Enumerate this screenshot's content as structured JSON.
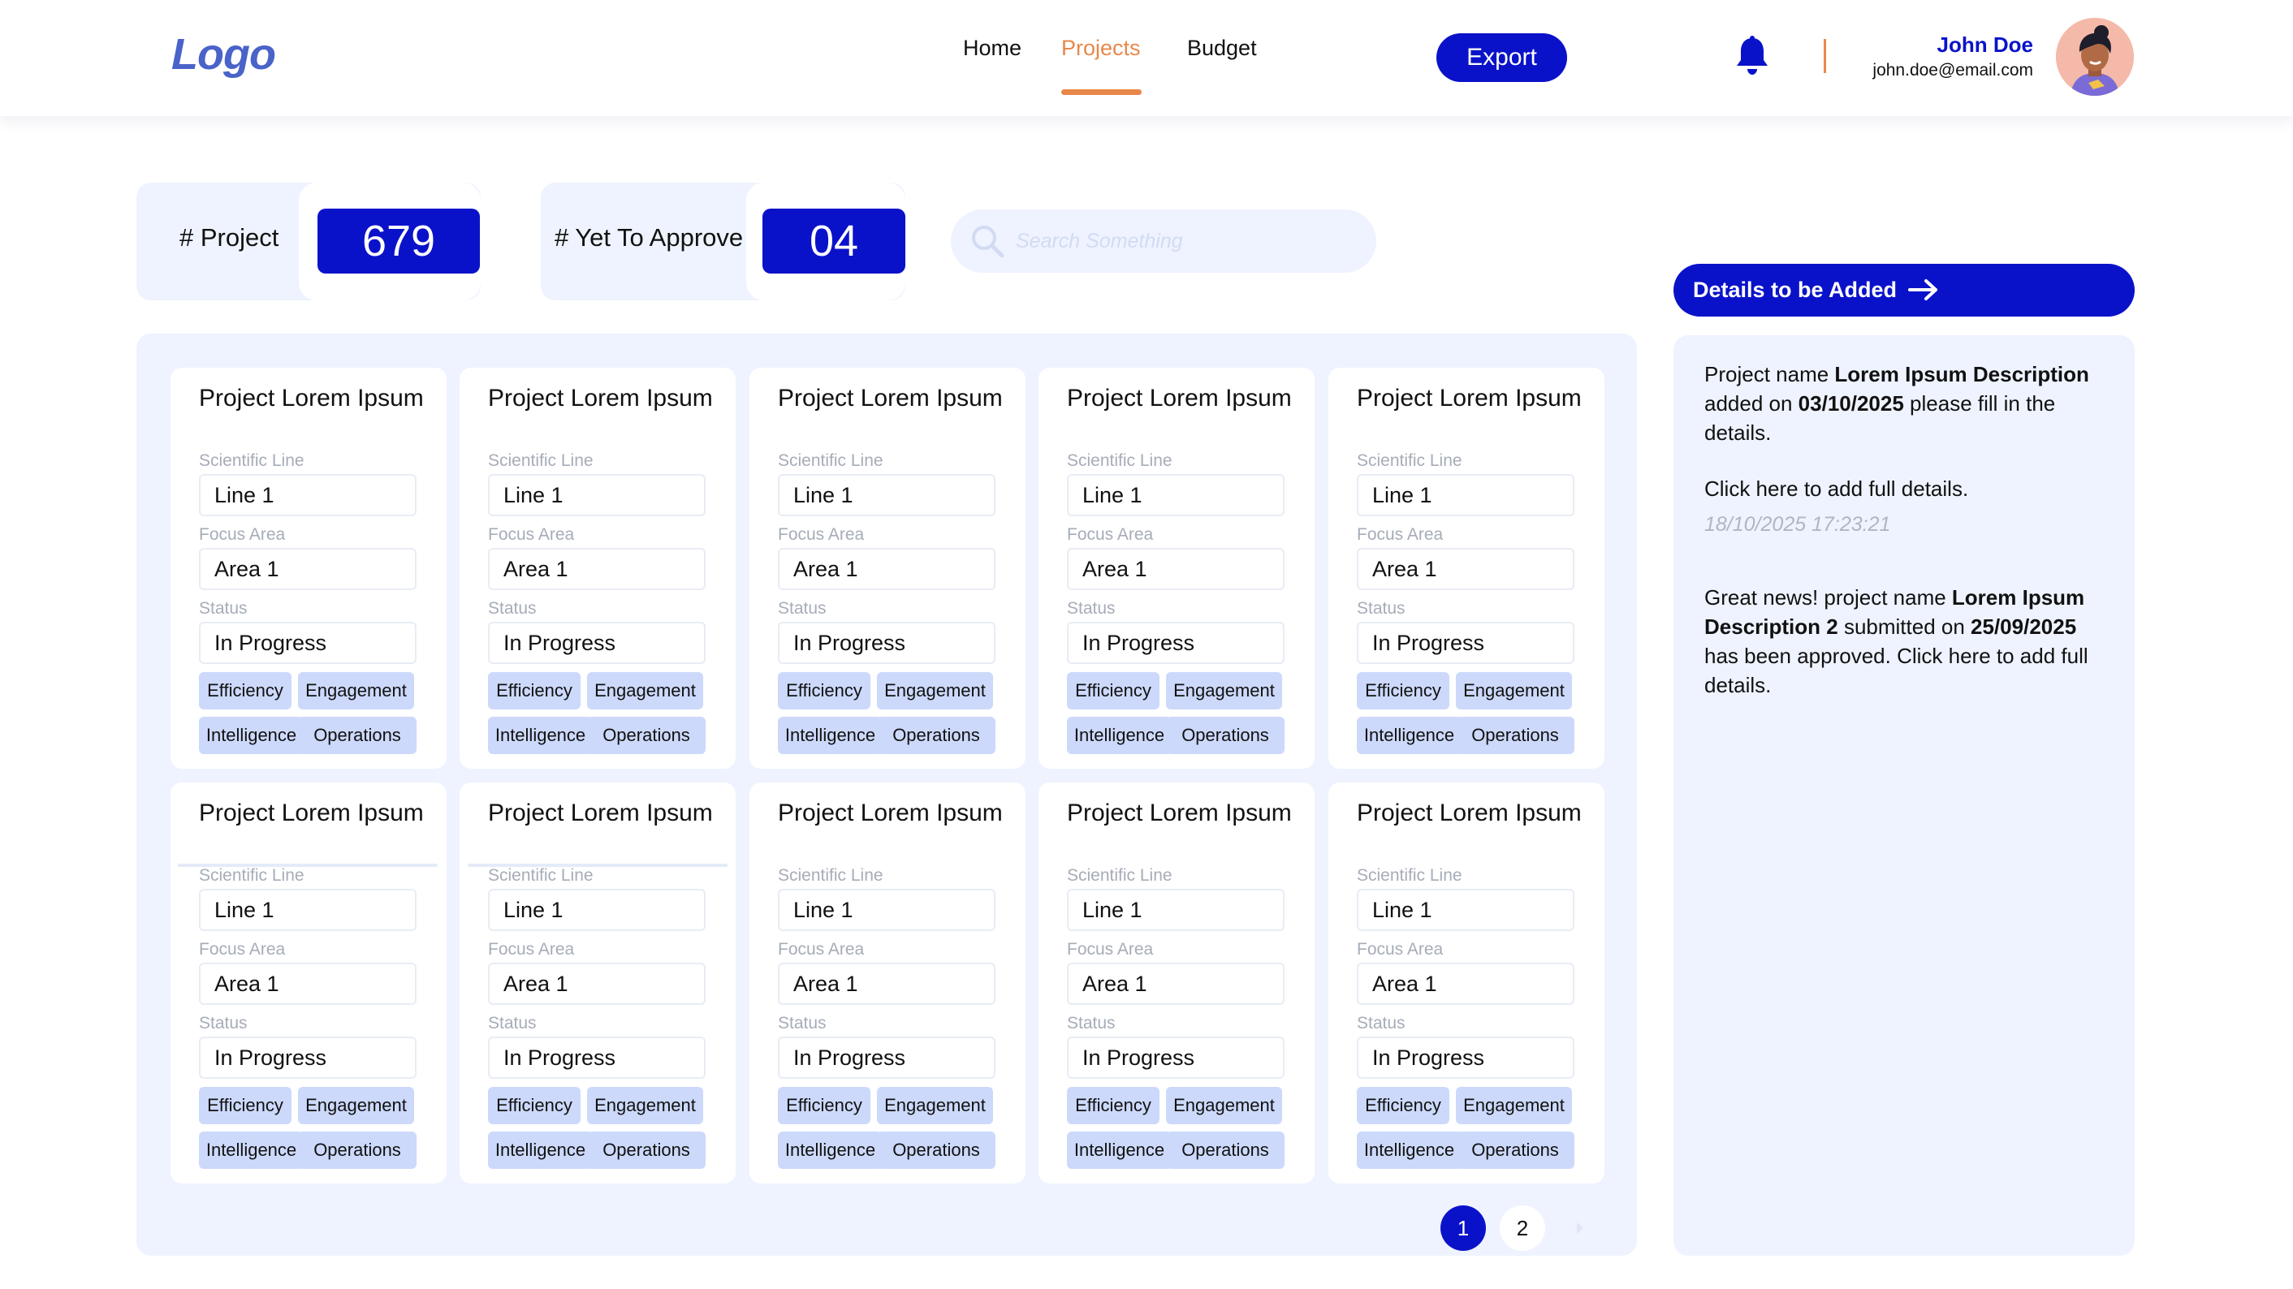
{
  "header": {
    "logo": "Logo",
    "nav": [
      {
        "label": "Home",
        "active": false
      },
      {
        "label": "Projects",
        "active": true
      },
      {
        "label": "Budget",
        "active": false
      }
    ],
    "export_label": "Export",
    "user": {
      "name": "John Doe",
      "email": "john.doe@email.com"
    }
  },
  "stats": {
    "project_label": "# Project",
    "project_value": "679",
    "approve_label": "# Yet To Approve",
    "approve_value": "04"
  },
  "search": {
    "placeholder": "Search Something"
  },
  "cards": [
    {
      "title": "Project Lorem Ipsum",
      "scientific_line_label": "Scientific Line",
      "scientific_line": "Line 1",
      "focus_area_label": "Focus Area",
      "focus_area": "Area 1",
      "status_label": "Status",
      "status": "In Progress",
      "tags": [
        "Efficiency",
        "Engagement",
        "Intelligence",
        "Operations"
      ]
    },
    {
      "title": "Project Lorem Ipsum",
      "scientific_line_label": "Scientific Line",
      "scientific_line": "Line 1",
      "focus_area_label": "Focus Area",
      "focus_area": "Area 1",
      "status_label": "Status",
      "status": "In Progress",
      "tags": [
        "Efficiency",
        "Engagement",
        "Intelligence",
        "Operations"
      ]
    },
    {
      "title": "Project Lorem Ipsum",
      "scientific_line_label": "Scientific Line",
      "scientific_line": "Line 1",
      "focus_area_label": "Focus Area",
      "focus_area": "Area 1",
      "status_label": "Status",
      "status": "In Progress",
      "tags": [
        "Efficiency",
        "Engagement",
        "Intelligence",
        "Operations"
      ]
    },
    {
      "title": "Project Lorem Ipsum",
      "scientific_line_label": "Scientific Line",
      "scientific_line": "Line 1",
      "focus_area_label": "Focus Area",
      "focus_area": "Area 1",
      "status_label": "Status",
      "status": "In Progress",
      "tags": [
        "Efficiency",
        "Engagement",
        "Intelligence",
        "Operations"
      ]
    },
    {
      "title": "Project Lorem Ipsum",
      "scientific_line_label": "Scientific Line",
      "scientific_line": "Line 1",
      "focus_area_label": "Focus Area",
      "focus_area": "Area 1",
      "status_label": "Status",
      "status": "In Progress",
      "tags": [
        "Efficiency",
        "Engagement",
        "Intelligence",
        "Operations"
      ]
    },
    {
      "title": "Project Lorem Ipsum",
      "scientific_line_label": "Scientific Line",
      "scientific_line": "Line 1",
      "focus_area_label": "Focus Area",
      "focus_area": "Area 1",
      "status_label": "Status",
      "status": "In Progress",
      "tags": [
        "Efficiency",
        "Engagement",
        "Intelligence",
        "Operations"
      ]
    },
    {
      "title": "Project Lorem Ipsum",
      "scientific_line_label": "Scientific Line",
      "scientific_line": "Line 1",
      "focus_area_label": "Focus Area",
      "focus_area": "Area 1",
      "status_label": "Status",
      "status": "In Progress",
      "tags": [
        "Efficiency",
        "Engagement",
        "Intelligence",
        "Operations"
      ]
    },
    {
      "title": "Project Lorem Ipsum",
      "scientific_line_label": "Scientific Line",
      "scientific_line": "Line 1",
      "focus_area_label": "Focus Area",
      "focus_area": "Area 1",
      "status_label": "Status",
      "status": "In Progress",
      "tags": [
        "Efficiency",
        "Engagement",
        "Intelligence",
        "Operations"
      ]
    },
    {
      "title": "Project Lorem Ipsum",
      "scientific_line_label": "Scientific Line",
      "scientific_line": "Line 1",
      "focus_area_label": "Focus Area",
      "focus_area": "Area 1",
      "status_label": "Status",
      "status": "In Progress",
      "tags": [
        "Efficiency",
        "Engagement",
        "Intelligence",
        "Operations"
      ]
    },
    {
      "title": "Project Lorem Ipsum",
      "scientific_line_label": "Scientific Line",
      "scientific_line": "Line 1",
      "focus_area_label": "Focus Area",
      "focus_area": "Area 1",
      "status_label": "Status",
      "status": "In Progress",
      "tags": [
        "Efficiency",
        "Engagement",
        "Intelligence",
        "Operations"
      ]
    }
  ],
  "pagination": {
    "pages": [
      "1",
      "2"
    ],
    "current": "1"
  },
  "details": {
    "button_label": "Details to be Added",
    "notification_1": {
      "t1": "Project name ",
      "b1": "Lorem Ipsum Description",
      "t2": " added on ",
      "b2": "03/10/2025",
      "t3": " please fill in the details."
    },
    "click_here": "Click here to add full details.",
    "timestamp": "18/10/2025 17:23:21",
    "notification_2": {
      "t1": "Great news! project name ",
      "b1": "Lorem Ipsum Description 2",
      "t2": " submitted on ",
      "b2": "25/09/2025",
      "t3": " has been approved. Click here to add full details."
    }
  },
  "colors": {
    "primary": "#0a12c9",
    "accent": "#e8884a",
    "panel": "#eef3ff",
    "tag": "#ccd9fb",
    "logo": "#4a63c9"
  },
  "icons": [
    "bell-icon",
    "search-icon",
    "arrow-right-icon",
    "chevron-right-icon",
    "avatar"
  ]
}
